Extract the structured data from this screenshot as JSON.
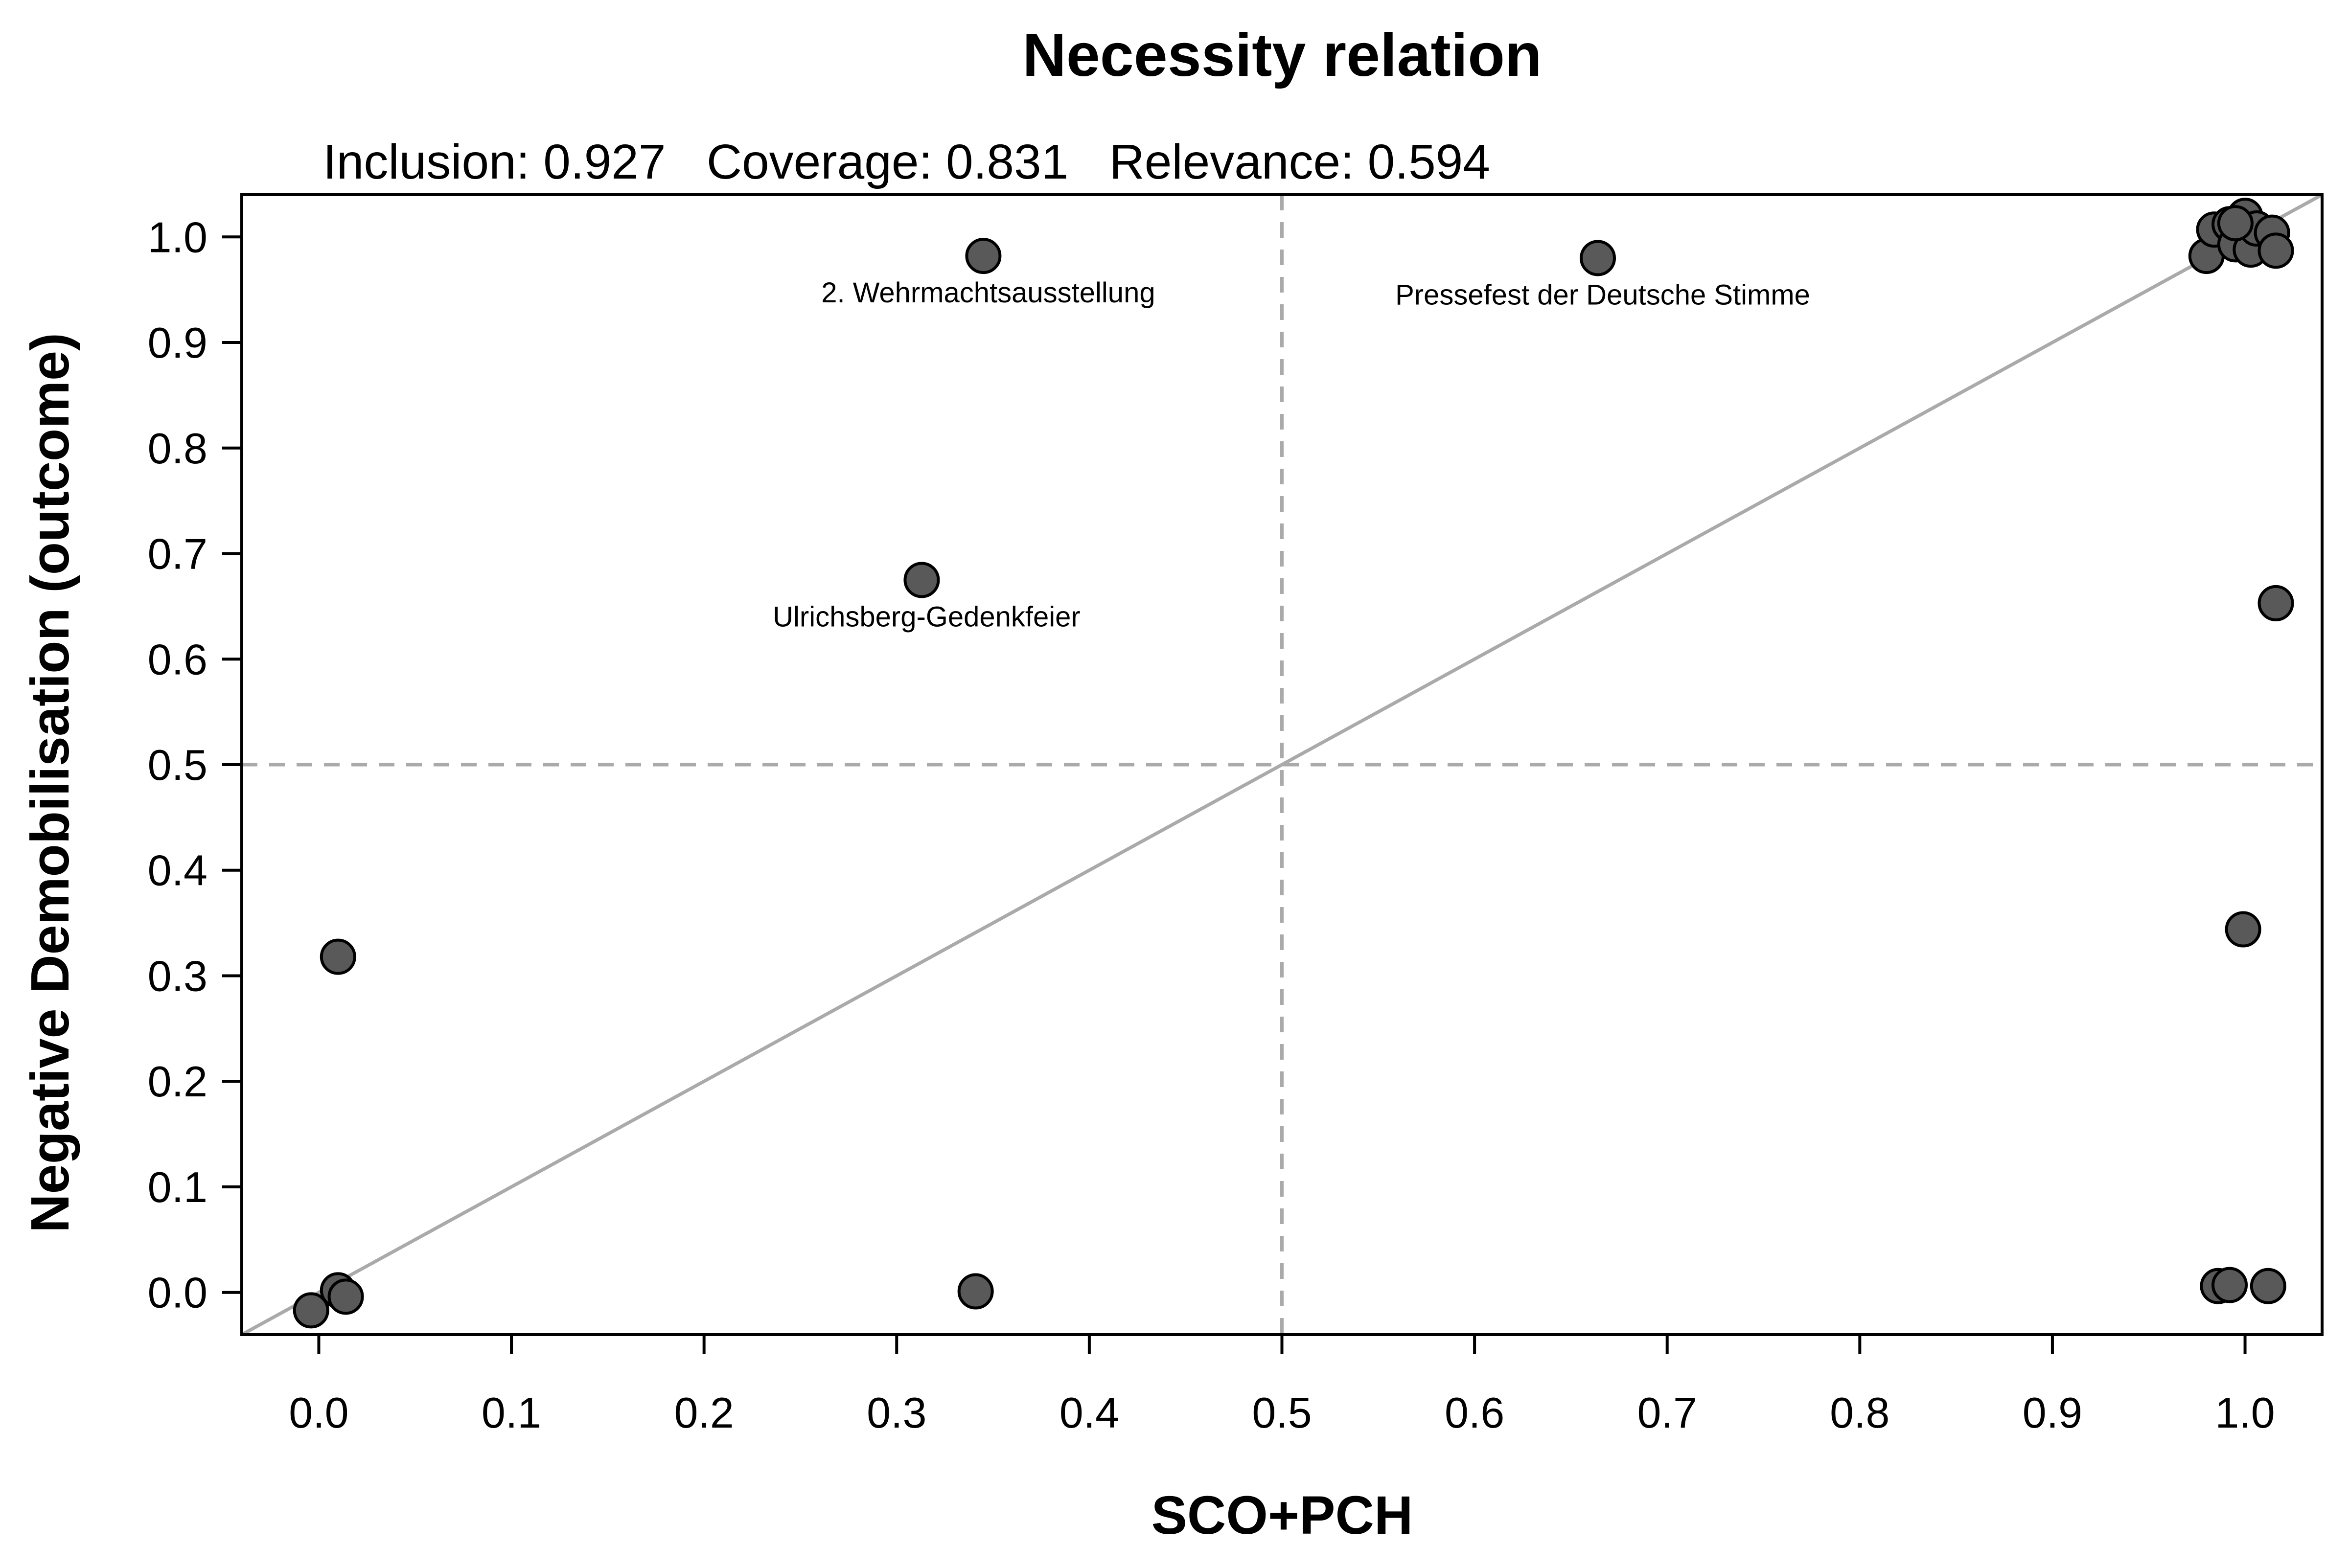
{
  "chart_data": {
    "type": "scatter",
    "title": "Necessity relation",
    "subtitle": "Inclusion: 0.927   Coverage: 0.831   Relevance: 0.594",
    "xlabel": "SCO+PCH",
    "ylabel": "Negative Demobilisation (outcome)",
    "xlim": [
      -0.04,
      1.04
    ],
    "ylim": [
      -0.04,
      1.04
    ],
    "xticks": [
      "0.0",
      "0.1",
      "0.2",
      "0.3",
      "0.4",
      "0.5",
      "0.6",
      "0.7",
      "0.8",
      "0.9",
      "1.0"
    ],
    "yticks": [
      "0.0",
      "0.1",
      "0.2",
      "0.3",
      "0.4",
      "0.5",
      "0.6",
      "0.7",
      "0.8",
      "0.9",
      "1.0"
    ],
    "reference_lines": {
      "diagonal": true,
      "vline": 0.5,
      "hline": 0.5
    },
    "colors": {
      "point_fill": "#595959",
      "point_stroke": "#000000",
      "reference": "#aaaaaa",
      "frame": "#000000"
    },
    "points": [
      {
        "x": 0.345,
        "y": 0.982,
        "label": "2. Wehrmachtsausstellung"
      },
      {
        "x": 0.664,
        "y": 0.98,
        "label": "Pressefest der Deutsche Stimme"
      },
      {
        "x": 0.313,
        "y": 0.675,
        "label": "Ulrichsberg-Gedenkfeier"
      },
      {
        "x": 0.01,
        "y": 0.318
      },
      {
        "x": 0.01,
        "y": 0.002
      },
      {
        "x": 0.014,
        "y": -0.004
      },
      {
        "x": -0.004,
        "y": -0.017
      },
      {
        "x": 0.341,
        "y": 0.001
      },
      {
        "x": 0.98,
        "y": 0.982
      },
      {
        "x": 0.984,
        "y": 1.007
      },
      {
        "x": 0.992,
        "y": 1.012
      },
      {
        "x": 0.995,
        "y": 0.993
      },
      {
        "x": 1.0,
        "y": 1.02
      },
      {
        "x": 1.003,
        "y": 0.988
      },
      {
        "x": 1.006,
        "y": 1.008
      },
      {
        "x": 1.014,
        "y": 1.004
      },
      {
        "x": 1.016,
        "y": 0.987
      },
      {
        "x": 0.995,
        "y": 1.013
      },
      {
        "x": 1.016,
        "y": 0.653
      },
      {
        "x": 0.999,
        "y": 0.344
      },
      {
        "x": 0.986,
        "y": 0.006
      },
      {
        "x": 0.992,
        "y": 0.007
      },
      {
        "x": 1.012,
        "y": 0.006
      }
    ]
  }
}
